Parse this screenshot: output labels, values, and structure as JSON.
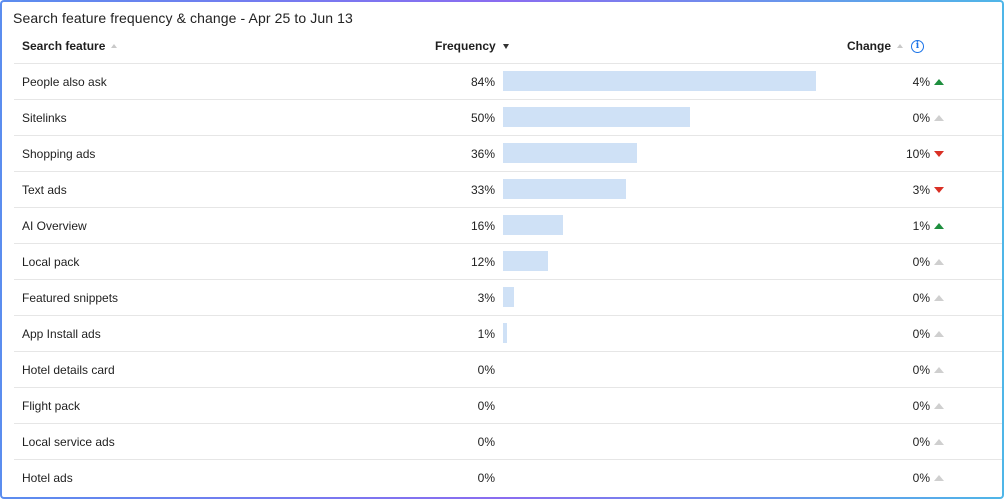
{
  "title": "Search feature frequency & change - Apr 25 to Jun 13",
  "columns": {
    "feature": "Search feature",
    "frequency": "Frequency",
    "change": "Change"
  },
  "colors": {
    "bar": "#cfe1f6",
    "up": "#1e8e3e",
    "down": "#d93025",
    "neutral": "#cfcfcf",
    "info": "#1a73e8"
  },
  "rows": [
    {
      "name": "People also ask",
      "frequency": "84%",
      "frequency_value": 84,
      "change": "4%",
      "direction": "up"
    },
    {
      "name": "Sitelinks",
      "frequency": "50%",
      "frequency_value": 50,
      "change": "0%",
      "direction": "neutral"
    },
    {
      "name": "Shopping ads",
      "frequency": "36%",
      "frequency_value": 36,
      "change": "10%",
      "direction": "down"
    },
    {
      "name": "Text ads",
      "frequency": "33%",
      "frequency_value": 33,
      "change": "3%",
      "direction": "down"
    },
    {
      "name": "AI Overview",
      "frequency": "16%",
      "frequency_value": 16,
      "change": "1%",
      "direction": "up"
    },
    {
      "name": "Local pack",
      "frequency": "12%",
      "frequency_value": 12,
      "change": "0%",
      "direction": "neutral"
    },
    {
      "name": "Featured snippets",
      "frequency": "3%",
      "frequency_value": 3,
      "change": "0%",
      "direction": "neutral"
    },
    {
      "name": "App Install ads",
      "frequency": "1%",
      "frequency_value": 1,
      "change": "0%",
      "direction": "neutral"
    },
    {
      "name": "Hotel details card",
      "frequency": "0%",
      "frequency_value": 0,
      "change": "0%",
      "direction": "neutral"
    },
    {
      "name": "Flight pack",
      "frequency": "0%",
      "frequency_value": 0,
      "change": "0%",
      "direction": "neutral"
    },
    {
      "name": "Local service ads",
      "frequency": "0%",
      "frequency_value": 0,
      "change": "0%",
      "direction": "neutral"
    },
    {
      "name": "Hotel ads",
      "frequency": "0%",
      "frequency_value": 0,
      "change": "0%",
      "direction": "neutral"
    }
  ]
}
